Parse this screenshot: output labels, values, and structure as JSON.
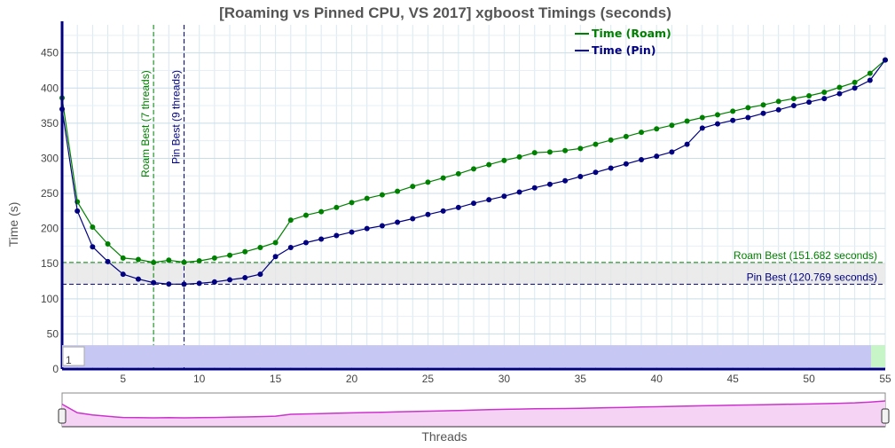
{
  "chart_data": {
    "type": "line",
    "title": "[Roaming vs Pinned CPU, VS 2017] xgboost Timings (seconds)",
    "xlabel": "Threads",
    "ylabel": "Time (s)",
    "xlim": [
      1,
      55
    ],
    "ylim": [
      0,
      490
    ],
    "x_ticks": [
      5,
      10,
      15,
      20,
      25,
      30,
      35,
      40,
      45,
      50,
      55
    ],
    "y_ticks": [
      0,
      50,
      100,
      150,
      200,
      250,
      300,
      350,
      400,
      450
    ],
    "grid": true,
    "legend_position": "top-right",
    "x": [
      1,
      2,
      3,
      4,
      5,
      6,
      7,
      8,
      9,
      10,
      11,
      12,
      13,
      14,
      15,
      16,
      17,
      18,
      19,
      20,
      21,
      22,
      23,
      24,
      25,
      26,
      27,
      28,
      29,
      30,
      31,
      32,
      33,
      34,
      35,
      36,
      37,
      38,
      39,
      40,
      41,
      42,
      43,
      44,
      45,
      46,
      47,
      48,
      49,
      50,
      51,
      52,
      53,
      54,
      55
    ],
    "series": [
      {
        "name": "Time (Roam)",
        "color": "#008000",
        "values": [
          386,
          238,
          202,
          178,
          158,
          156,
          151.682,
          155,
          152,
          154,
          158,
          162,
          167,
          173,
          180,
          212,
          219,
          224,
          230,
          237,
          243,
          248,
          253,
          260,
          266,
          272,
          278,
          285,
          291,
          297,
          302,
          308,
          309,
          311,
          314,
          320,
          326,
          331,
          337,
          342,
          347,
          353,
          358,
          362,
          367,
          372,
          376,
          381,
          385,
          389,
          394,
          401,
          408,
          421,
          440
        ]
      },
      {
        "name": "Time (Pin)",
        "color": "#000080",
        "values": [
          370,
          225,
          174,
          153,
          135,
          128,
          123,
          121,
          120.769,
          122,
          124,
          127,
          130,
          135,
          160,
          173,
          180,
          185,
          190,
          195,
          200,
          204,
          209,
          214,
          220,
          225,
          230,
          236,
          241,
          246,
          252,
          258,
          263,
          268,
          274,
          280,
          286,
          292,
          298,
          303,
          309,
          320,
          343,
          349,
          354,
          358,
          364,
          369,
          375,
          380,
          385,
          392,
          400,
          411,
          440
        ]
      }
    ],
    "annotations": {
      "roam_best_v": "Roam Best (7 threads)",
      "pin_best_v": "Pin Best (9 threads)",
      "roam_best_h": "Roam Best (151.682 seconds)",
      "pin_best_h": "Pin Best (120.769 seconds)",
      "roam_best_x": 7,
      "pin_best_x": 9,
      "roam_best_y": 151.682,
      "pin_best_y": 120.769
    },
    "range_selector": {
      "input_value": "1"
    }
  }
}
